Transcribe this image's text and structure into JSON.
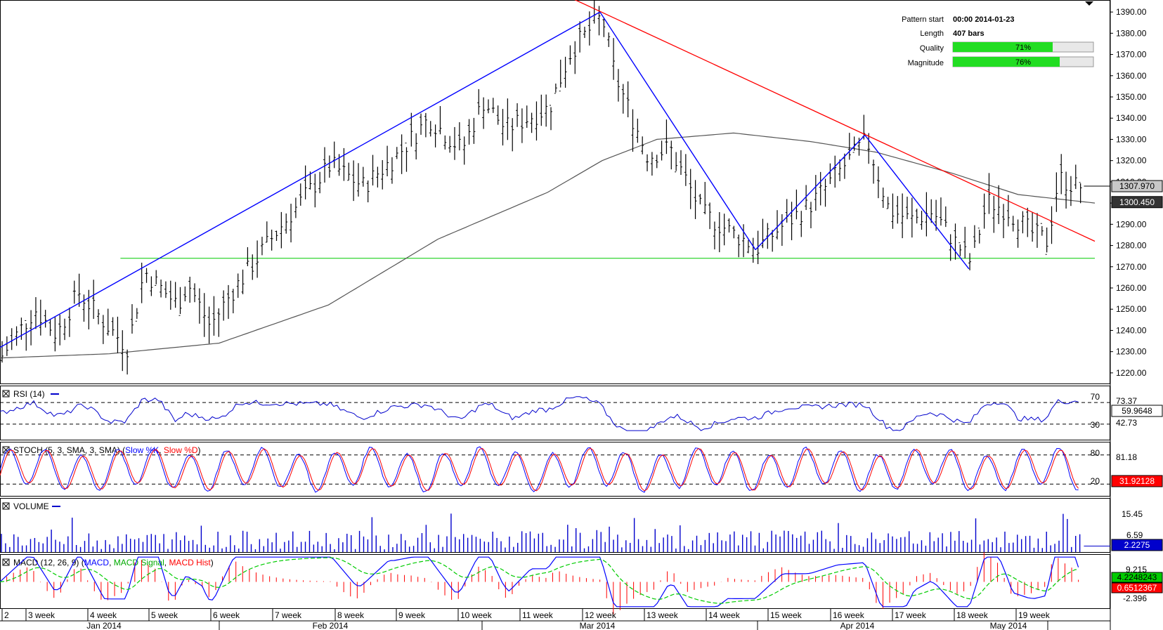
{
  "pattern_info": {
    "pattern_start_label": "Pattern start",
    "pattern_start_value": "00:00 2014-01-23",
    "length_label": "Length",
    "length_value": "407 bars",
    "quality_label": "Quality",
    "quality_value": "71%",
    "quality_fraction": 0.71,
    "magnitude_label": "Magnitude",
    "magnitude_value": "76%",
    "magnitude_fraction": 0.76,
    "bar_color": "#22dd22"
  },
  "chart_data": [
    {
      "type": "ohlc",
      "panel": "price",
      "ylim": [
        1215,
        1395
      ],
      "y_ticks": [
        "1390.00",
        "1380.00",
        "1370.00",
        "1360.00",
        "1350.00",
        "1340.00",
        "1330.00",
        "1320.00",
        "1310.00",
        "1300.00",
        "1290.00",
        "1280.00",
        "1270.00",
        "1260.00",
        "1250.00",
        "1240.00",
        "1230.00",
        "1220.00"
      ],
      "y_tick_values": [
        1390,
        1380,
        1370,
        1360,
        1350,
        1340,
        1330,
        1320,
        1310,
        1300,
        1290,
        1280,
        1270,
        1260,
        1250,
        1240,
        1230,
        1220
      ],
      "last_price_label": "1307.970",
      "last_price": 1307.97,
      "ma_label": "1300.450",
      "ma_value": 1300.45,
      "close_path": [
        [
          0,
          1228
        ],
        [
          0.03,
          1250
        ],
        [
          0.05,
          1238
        ],
        [
          0.07,
          1258
        ],
        [
          0.1,
          1240
        ],
        [
          0.115,
          1232
        ],
        [
          0.13,
          1268
        ],
        [
          0.16,
          1252
        ],
        [
          0.17,
          1262
        ],
        [
          0.19,
          1242
        ],
        [
          0.21,
          1258
        ],
        [
          0.25,
          1286
        ],
        [
          0.3,
          1318
        ],
        [
          0.33,
          1308
        ],
        [
          0.36,
          1322
        ],
        [
          0.39,
          1340
        ],
        [
          0.42,
          1325
        ],
        [
          0.44,
          1348
        ],
        [
          0.46,
          1335
        ],
        [
          0.5,
          1345
        ],
        [
          0.52,
          1372
        ],
        [
          0.548,
          1388
        ],
        [
          0.56,
          1360
        ],
        [
          0.59,
          1322
        ],
        [
          0.61,
          1326
        ],
        [
          0.64,
          1295
        ],
        [
          0.67,
          1285
        ],
        [
          0.69,
          1279
        ],
        [
          0.71,
          1288
        ],
        [
          0.74,
          1300
        ],
        [
          0.76,
          1312
        ],
        [
          0.79,
          1330
        ],
        [
          0.81,
          1297
        ],
        [
          0.83,
          1292
        ],
        [
          0.85,
          1296
        ],
        [
          0.87,
          1282
        ],
        [
          0.885,
          1272
        ],
        [
          0.9,
          1301
        ],
        [
          0.92,
          1296
        ],
        [
          0.94,
          1286
        ],
        [
          0.955,
          1282
        ],
        [
          0.965,
          1312
        ],
        [
          0.98,
          1308
        ]
      ],
      "ma_path": [
        [
          0,
          1227
        ],
        [
          0.1,
          1229
        ],
        [
          0.2,
          1234
        ],
        [
          0.3,
          1252
        ],
        [
          0.4,
          1283
        ],
        [
          0.5,
          1305
        ],
        [
          0.55,
          1320
        ],
        [
          0.6,
          1330
        ],
        [
          0.67,
          1333
        ],
        [
          0.74,
          1329
        ],
        [
          0.8,
          1324
        ],
        [
          0.87,
          1314
        ],
        [
          0.93,
          1304
        ],
        [
          1,
          1300
        ]
      ],
      "horizontal_support": 1274,
      "pattern_lines": [
        [
          0,
          1232
        ],
        [
          0.548,
          1390
        ],
        [
          0.69,
          1278
        ],
        [
          0.79,
          1332
        ],
        [
          0.885,
          1269
        ]
      ],
      "trend_line": [
        [
          0.52,
          1397
        ],
        [
          1,
          1282
        ]
      ]
    },
    {
      "type": "line",
      "panel": "rsi",
      "title": "RSI (14)",
      "ylim": [
        0,
        100
      ],
      "levels": [
        70,
        30
      ],
      "level_labels": [
        "70",
        "30"
      ],
      "scale_labels": [
        "73.37",
        "42.73"
      ],
      "scale_values": [
        73.37,
        42.73
      ],
      "last_value_label": "59.9648",
      "last_value": 59.9648
    },
    {
      "type": "line",
      "panel": "stoch",
      "title": "STOCH (5, 3, SMA, 3, SMA)",
      "series": [
        {
          "name": "Slow %K",
          "color": "#0000ff"
        },
        {
          "name": "Slow %D",
          "color": "#ff0000"
        }
      ],
      "ylim": [
        0,
        100
      ],
      "levels": [
        80,
        20
      ],
      "level_labels": [
        "80",
        "20"
      ],
      "scale_labels": [
        "81.18"
      ],
      "scale_values": [
        81.18
      ],
      "last_value_label": "31.92128",
      "last_value": 31.92128
    },
    {
      "type": "bar",
      "panel": "volume",
      "title": "VOLUME",
      "ylim": [
        0,
        20
      ],
      "scale_labels": [
        "15.45",
        "6.59"
      ],
      "scale_values": [
        15.45,
        6.59
      ],
      "last_value_label": "2.2275",
      "last_value": 2.2275
    },
    {
      "type": "line",
      "panel": "macd",
      "title": "MACD (12, 26, 9)",
      "series": [
        {
          "name": "MACD",
          "color": "#0000ff"
        },
        {
          "name": "MACD Signal",
          "color": "#00cc00"
        },
        {
          "name": "MACD Hist",
          "color": "#ff0000"
        }
      ],
      "ylim": [
        -12,
        12
      ],
      "scale_labels": [
        "9.215",
        "-2.396"
      ],
      "scale_values": [
        9.215,
        -2.396
      ],
      "macd_value_label": "4.2248243",
      "hist_value_label": "0.6512367"
    }
  ],
  "x_axis": {
    "week_labels": [
      "2",
      "3 week",
      "4 week",
      "5 week",
      "6 week",
      "7 week",
      "8 week",
      "9 week",
      "10 week",
      "11 week",
      "12 week",
      "13 week",
      "14 week",
      "15 week",
      "16 week",
      "17 week",
      "18 week",
      "19 week"
    ],
    "month_labels": [
      "Jan 2014",
      "Feb 2014",
      "Mar 2014",
      "Apr 2014",
      "May 2014"
    ]
  },
  "colors": {
    "bars": "#000000",
    "pattern": "#0000ff",
    "trend": "#ff0000",
    "support": "#00cc00",
    "ma": "#555555",
    "rsi": "#0000cc",
    "volume": "#0000cc"
  }
}
